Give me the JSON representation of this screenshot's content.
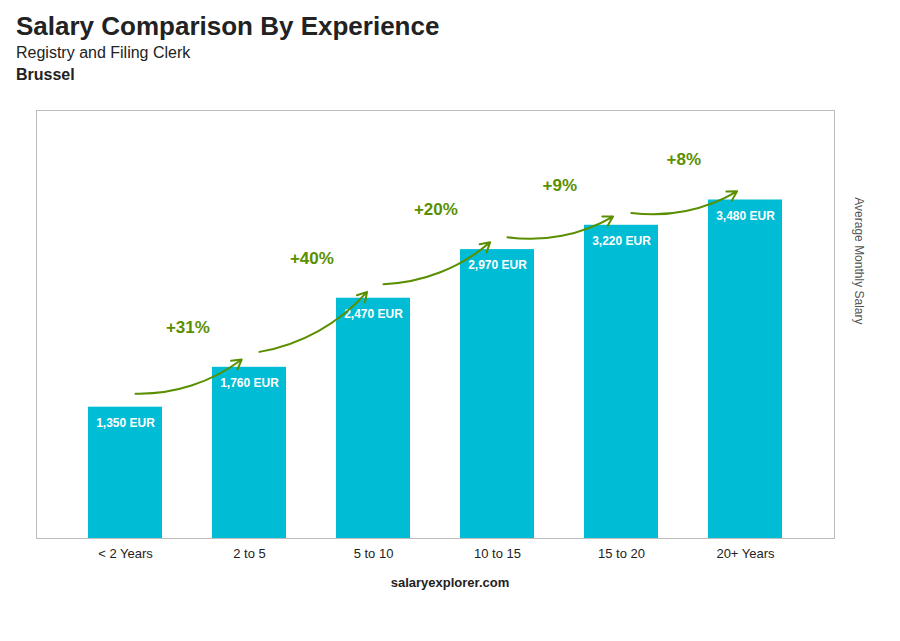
{
  "chart_data": {
    "type": "bar",
    "title": "Salary Comparison By Experience",
    "subtitle": [
      "Registry and Filing Clerk",
      "Brussel"
    ],
    "caption": "salaryexplorer.com",
    "ylabel": "Average Monthly Salary",
    "categories": [
      "< 2 Years",
      "2 to 5",
      "5 to 10",
      "10 to 15",
      "15 to 20",
      "20+ Years"
    ],
    "values": [
      1350,
      1760,
      2470,
      2970,
      3220,
      3480
    ],
    "value_labels": [
      "1,350 EUR",
      "1,760 EUR",
      "2,470 EUR",
      "2,970 EUR",
      "3,220 EUR",
      "3,480 EUR"
    ],
    "data_labels": true,
    "annotations": [
      "+31%",
      "+40%",
      "+20%",
      "+9%",
      "+8%"
    ],
    "color": "#00bcd4",
    "ylim": [
      0,
      4400
    ],
    "grid": false,
    "tick_labels": "x"
  }
}
